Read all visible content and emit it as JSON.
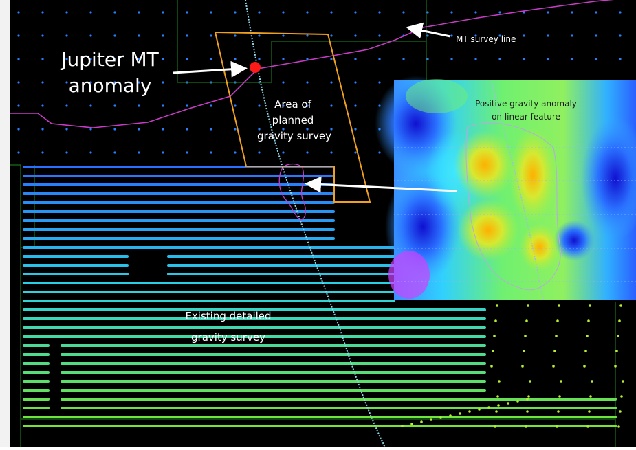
{
  "labels": {
    "jupiter_line1": "Jupiter MT",
    "jupiter_line2": "anomaly",
    "mt_survey_line": "MT survey line",
    "area_line1": "Area of",
    "area_line2": "planned",
    "area_line3": "gravity survey",
    "positive_line1": "Positive gravity anomaly",
    "positive_line2": "on linear feature",
    "existing_line1": "Existing detailed",
    "existing_line2": "gravity survey"
  },
  "colors": {
    "background": "#000000",
    "mt_line": "#c83cc8",
    "planned_area": "#f0a020",
    "anomaly_marker": "#ff1a1a",
    "linear_feature": "#8fd8e8",
    "station_dots": "#2a7fff",
    "boundary": "#1e8c1e",
    "gravity_low": "#1a4cff",
    "gravity_high": "#ffb400"
  }
}
